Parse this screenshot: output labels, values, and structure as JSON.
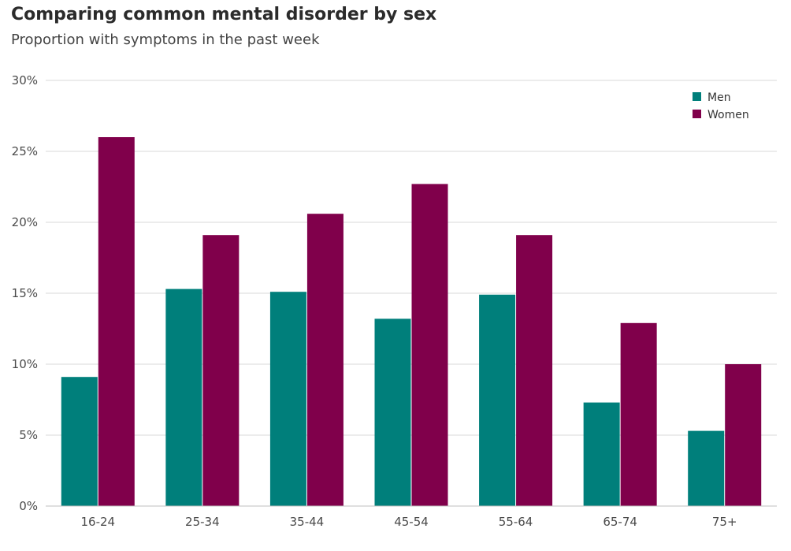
{
  "chart_data": {
    "type": "bar",
    "title": "Comparing common mental disorder by sex",
    "subtitle": "Proportion with symptoms in the past week",
    "xlabel": "",
    "ylabel": "",
    "categories": [
      "16-24",
      "25-34",
      "35-44",
      "45-54",
      "55-64",
      "65-74",
      "75+"
    ],
    "series": [
      {
        "name": "Men",
        "color": "#007f7b",
        "values": [
          9.1,
          15.3,
          15.1,
          13.2,
          14.9,
          7.3,
          5.3
        ]
      },
      {
        "name": "Women",
        "color": "#80004b",
        "values": [
          26.0,
          19.1,
          20.6,
          22.7,
          19.1,
          12.9,
          10.0
        ]
      }
    ],
    "ylim": [
      0,
      30
    ],
    "yticks": [
      0,
      5,
      10,
      15,
      20,
      25,
      30
    ],
    "ytick_labels": [
      "0%",
      "5%",
      "10%",
      "15%",
      "20%",
      "25%",
      "30%"
    ],
    "grid": true,
    "legend_position": "top-right"
  }
}
